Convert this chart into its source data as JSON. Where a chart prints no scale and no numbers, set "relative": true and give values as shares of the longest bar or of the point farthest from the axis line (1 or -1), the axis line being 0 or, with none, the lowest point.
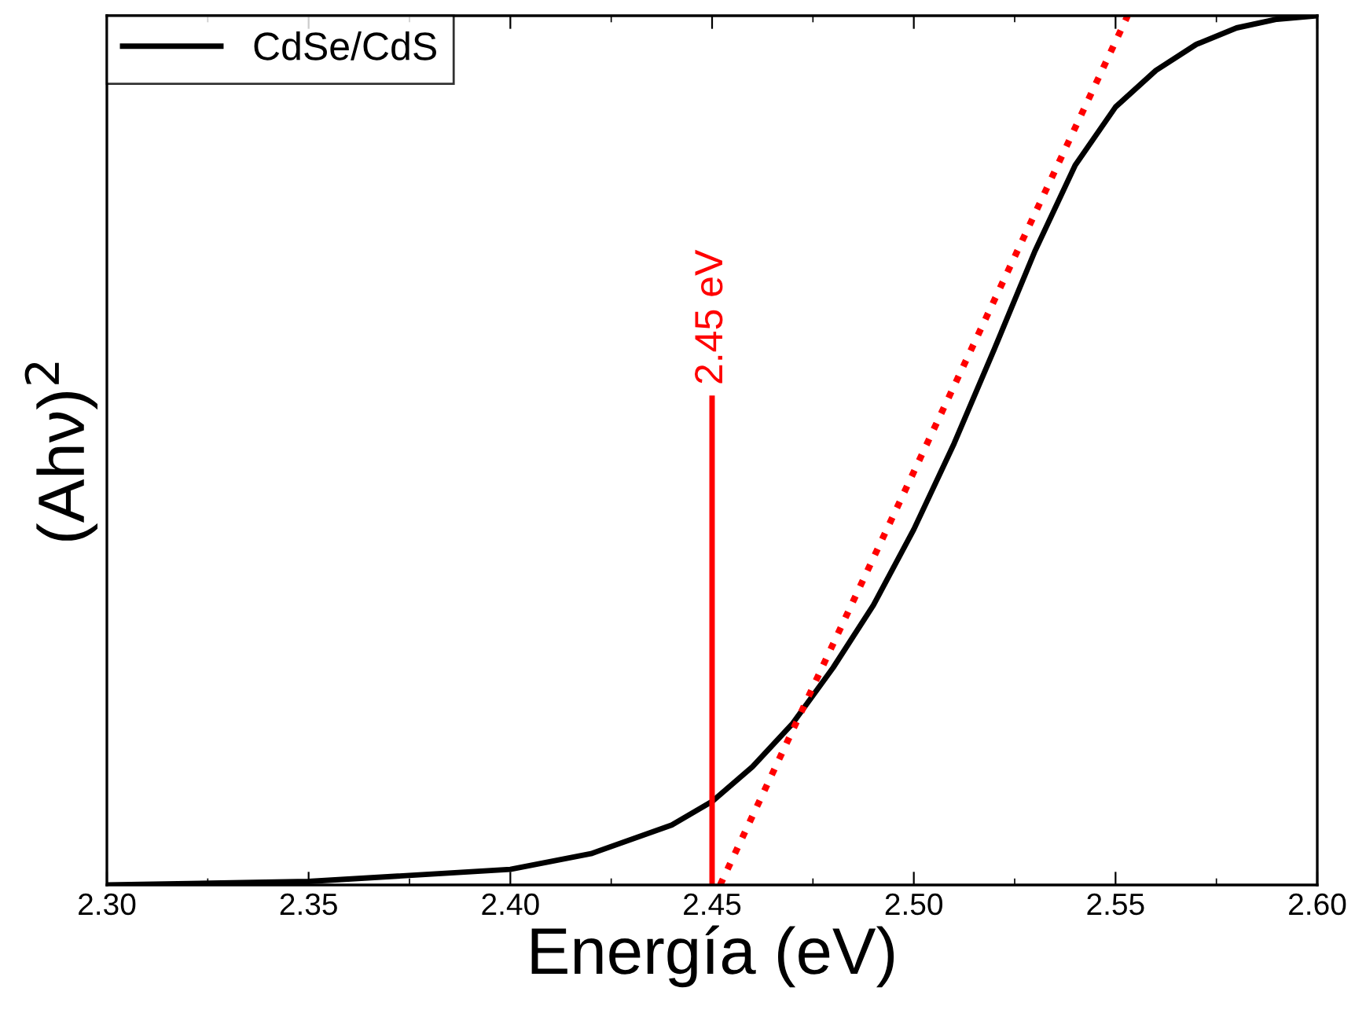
{
  "chart_data": {
    "type": "line",
    "xlabel": "Energía (eV)",
    "ylabel": "(Ahν)$^{2}$",
    "relative": true,
    "xlim": [
      2.3,
      2.6
    ],
    "xticks": [
      {
        "value": 2.3,
        "label": "2.30"
      },
      2.35,
      {
        "value": 2.4,
        "label": "2.40"
      },
      2.45,
      {
        "value": 2.5,
        "label": "2.50"
      },
      2.55,
      {
        "value": 2.6,
        "label": "2.60"
      }
    ],
    "legend": "top left",
    "grid": false,
    "series": [
      {
        "name": "CdSe/CdS",
        "color": "#000000",
        "line_style": "solid",
        "x": [
          2.3,
          2.35,
          2.4,
          2.42,
          2.44,
          2.45,
          2.46,
          2.47,
          2.48,
          2.49,
          2.5,
          2.51,
          2.52,
          2.53,
          2.54,
          2.55,
          2.56,
          2.57,
          2.58,
          2.59,
          2.6
        ],
        "values": [
          0,
          0.004,
          0.018,
          0.036,
          0.069,
          0.096,
          0.136,
          0.186,
          0.25,
          0.322,
          0.409,
          0.508,
          0.617,
          0.729,
          0.828,
          0.895,
          0.937,
          0.967,
          0.986,
          0.996,
          1.0
        ]
      },
      {
        "color": "#ff0000",
        "line_style": "dotted",
        "x": [
          2.452,
          2.553
        ],
        "values": [
          0,
          1.0
        ]
      },
      {
        "color": "#ff0000",
        "line_style": "solid",
        "x": [
          2.45,
          2.45
        ],
        "values": [
          0,
          0.56
        ]
      }
    ],
    "annotations": [
      {
        "text": "2.45 eV",
        "x": 2.45,
        "y": 0.56
      }
    ]
  }
}
